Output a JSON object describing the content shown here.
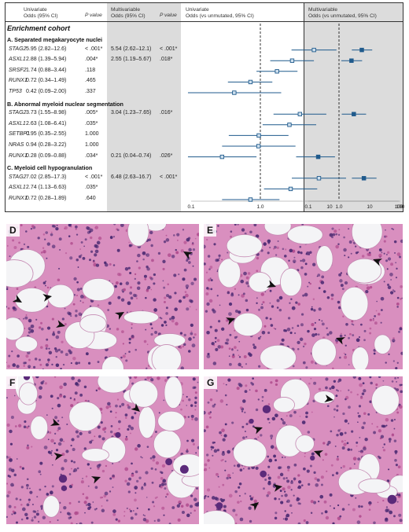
{
  "table": {
    "headers": {
      "univariate": "Univariate\nOdds (95% CI)",
      "p_value_1": "P value",
      "multivariable": "Multivariable\nOdds (95% CI)",
      "p_value_2": "P value",
      "forest_uni": "Univariate\nOdds (vs unmutated, 95% CI)",
      "forest_multi": "Multivariable\nOdds (vs unmutated, 95% CI)"
    },
    "cohort": "Enrichment cohort",
    "sections": [
      {
        "title": "A. Separated megakaryocyte nuclei",
        "rows": [
          {
            "gene": "STAG2",
            "uni": "5.95 (2.82–12.6)",
            "p1": "< .001*",
            "multi": "5.54 (2.62–12.1)",
            "p2": "< .001*"
          },
          {
            "gene": "ASXL1",
            "uni": "2.88 (1.39–5.94)",
            "p1": ".004*",
            "multi": "2.55 (1.19–5.67)",
            "p2": ".018*"
          },
          {
            "gene": "SRSF2",
            "uni": "1.74 (0.88–3.44)",
            "p1": ".118",
            "multi": "",
            "p2": ""
          },
          {
            "gene": "RUNX1",
            "uni": "0.72 (0.34–1.49)",
            "p1": ".465",
            "multi": "",
            "p2": ""
          },
          {
            "gene": "TP53",
            "uni": "0.42 (0.09–2.00)",
            "p1": ".337",
            "multi": "",
            "p2": ""
          }
        ]
      },
      {
        "title": "B. Abnormal myeloid nuclear segmentation",
        "rows": [
          {
            "gene": "STAG2",
            "uni": "3.73 (1.55–8.98)",
            "p1": ".005*",
            "multi": "3.04 (1.23–7.65)",
            "p2": ".016*"
          },
          {
            "gene": "ASXL1",
            "uni": "2.63 (1.08–6.41)",
            "p1": ".035*",
            "multi": "",
            "p2": ""
          },
          {
            "gene": "SETBP1",
            "uni": "0.95 (0.35–2.55)",
            "p1": "1.000",
            "multi": "",
            "p2": ""
          },
          {
            "gene": "NRAS",
            "uni": "0.94 (0.28–3.22)",
            "p1": "1.000",
            "multi": "",
            "p2": ""
          },
          {
            "gene": "RUNX1",
            "uni": "0.28 (0.09–0.88)",
            "p1": ".034*",
            "multi": "0.21 (0.04–0.74)",
            "p2": ".026*"
          }
        ]
      },
      {
        "title": "C. Myeloid cell hypogranulation",
        "rows": [
          {
            "gene": "STAG2",
            "uni": "7.02 (2.85–17.3)",
            "p1": "< .001*",
            "multi": "6.48 (2.63–16.7)",
            "p2": "< .001*"
          },
          {
            "gene": "ASXL1",
            "uni": "2.74 (1.13–6.63)",
            "p1": ".035*",
            "multi": "",
            "p2": ""
          },
          {
            "gene": "RUNX1",
            "uni": "0.72 (0.28–1.89)",
            "p1": ".640",
            "multi": "",
            "p2": ""
          }
        ]
      }
    ]
  },
  "forest": {
    "ticks": [
      "0.1",
      "1.0",
      "10",
      "100"
    ],
    "ticks_multi": [
      "0.1",
      "1.0",
      "10",
      "100"
    ],
    "colors": {
      "marker": "#1f5a8c",
      "reference_line": "#222222"
    },
    "univariate": [
      {
        "row": 1,
        "or": 5.95,
        "lo": 2.82,
        "hi": 12.6
      },
      {
        "row": 2,
        "or": 2.88,
        "lo": 1.39,
        "hi": 5.94
      },
      {
        "row": 3,
        "or": 1.74,
        "lo": 0.88,
        "hi": 3.44
      },
      {
        "row": 4,
        "or": 0.72,
        "lo": 0.34,
        "hi": 1.49
      },
      {
        "row": 5,
        "or": 0.42,
        "lo": 0.09,
        "hi": 2.0
      },
      {
        "row": 7,
        "or": 3.73,
        "lo": 1.55,
        "hi": 8.98
      },
      {
        "row": 8,
        "or": 2.63,
        "lo": 1.08,
        "hi": 6.41
      },
      {
        "row": 9,
        "or": 0.95,
        "lo": 0.35,
        "hi": 2.55
      },
      {
        "row": 10,
        "or": 0.94,
        "lo": 0.28,
        "hi": 3.22
      },
      {
        "row": 11,
        "or": 0.28,
        "lo": 0.09,
        "hi": 0.88
      },
      {
        "row": 13,
        "or": 7.02,
        "lo": 2.85,
        "hi": 17.3
      },
      {
        "row": 14,
        "or": 2.74,
        "lo": 1.13,
        "hi": 6.63
      },
      {
        "row": 15,
        "or": 0.72,
        "lo": 0.28,
        "hi": 1.89
      }
    ],
    "multivariable": [
      {
        "row": 1,
        "or": 5.54,
        "lo": 2.62,
        "hi": 12.1
      },
      {
        "row": 2,
        "or": 2.55,
        "lo": 1.19,
        "hi": 5.67
      },
      {
        "row": 7,
        "or": 3.04,
        "lo": 1.23,
        "hi": 7.65
      },
      {
        "row": 11,
        "or": 0.21,
        "lo": 0.04,
        "hi": 0.74
      },
      {
        "row": 13,
        "or": 6.48,
        "lo": 2.63,
        "hi": 16.7
      }
    ]
  },
  "histology": {
    "panels": [
      {
        "label": "D",
        "arrowheads": 5
      },
      {
        "label": "E",
        "arrowheads": 4
      },
      {
        "label": "F",
        "arrowheads": 4
      },
      {
        "label": "G",
        "arrowheads": 7
      }
    ],
    "colors": {
      "stroma": "#d98fbf",
      "nuclei": "#4b2a72",
      "fat": "#f4f4f6",
      "arrow": "#111111"
    }
  }
}
